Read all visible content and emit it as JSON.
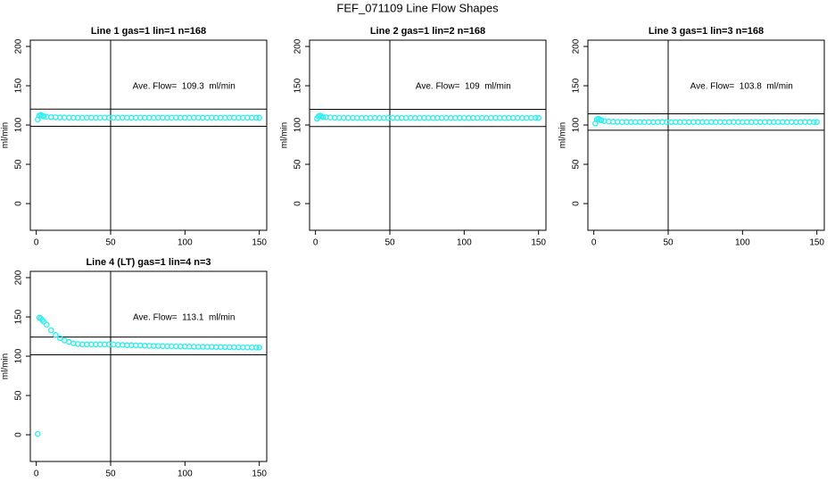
{
  "title": "FEF_071109  Line Flow Shapes",
  "chart_data": [
    {
      "type": "scatter",
      "title": "Line 1 gas=1 lin=1 n=168",
      "y_label": "ml/min",
      "annotation": "Ave. Flow=  109.3  ml/min",
      "color": "#33eeee",
      "x": [
        1,
        2,
        3,
        4,
        5,
        7,
        10,
        13,
        16,
        19,
        22,
        25,
        28,
        31,
        34,
        37,
        40,
        43,
        46,
        49,
        52,
        55,
        58,
        61,
        64,
        67,
        70,
        73,
        76,
        79,
        82,
        85,
        88,
        91,
        94,
        97,
        100,
        103,
        106,
        109,
        112,
        115,
        118,
        121,
        124,
        127,
        130,
        133,
        136,
        139,
        142,
        145,
        148,
        150
      ],
      "values": [
        107,
        112,
        113,
        112,
        111,
        110.5,
        110,
        109.8,
        109.6,
        109.5,
        109.4,
        109.3,
        109.3,
        109.2,
        109.4,
        109.3,
        109.3,
        109.2,
        109.4,
        109.3,
        109.3,
        109.2,
        109.4,
        109.3,
        109.3,
        109.2,
        109.4,
        109.3,
        109.3,
        109.2,
        109.4,
        109.3,
        109.3,
        109.2,
        109.4,
        109.3,
        109.3,
        109.2,
        109.4,
        109.3,
        109.3,
        109.2,
        109.4,
        109.3,
        109.3,
        109.2,
        109.4,
        109.3,
        109.3,
        109.2,
        109.4,
        109.3,
        109.3,
        109.2
      ],
      "hlines": [
        98.4,
        120.2
      ],
      "vlines": [
        50
      ],
      "xlim": [
        -4,
        155
      ],
      "ylim": [
        -34,
        208
      ],
      "xticks": [
        0,
        50,
        100,
        150
      ],
      "yticks": [
        0,
        50,
        100,
        150,
        200
      ]
    },
    {
      "type": "scatter",
      "title": "Line 2 gas=1 lin=2 n=168",
      "y_label": "ml/min",
      "annotation": "Ave. Flow=  109  ml/min",
      "color": "#33eeee",
      "x": [
        1,
        2,
        3,
        4,
        5,
        7,
        10,
        13,
        16,
        19,
        22,
        25,
        28,
        31,
        34,
        37,
        40,
        43,
        46,
        49,
        52,
        55,
        58,
        61,
        64,
        67,
        70,
        73,
        76,
        79,
        82,
        85,
        88,
        91,
        94,
        97,
        100,
        103,
        106,
        109,
        112,
        115,
        118,
        121,
        124,
        127,
        130,
        133,
        136,
        139,
        142,
        145,
        148,
        150
      ],
      "values": [
        108,
        111,
        112,
        111,
        110,
        109.8,
        109.5,
        109.3,
        109.2,
        109.1,
        109,
        109,
        109.1,
        108.9,
        109,
        109,
        109.1,
        108.9,
        109,
        109,
        109.1,
        108.9,
        109,
        109,
        109.1,
        108.9,
        109,
        109,
        109.1,
        108.9,
        109,
        109,
        109.1,
        108.9,
        109,
        109,
        109.1,
        108.9,
        109,
        109,
        109.1,
        108.9,
        109,
        109,
        109.1,
        108.9,
        109,
        109,
        109.1,
        108.9,
        109,
        109,
        109.1,
        108.9
      ],
      "hlines": [
        98.1,
        119.9
      ],
      "vlines": [
        50
      ],
      "xlim": [
        -4,
        155
      ],
      "ylim": [
        -34,
        208
      ],
      "xticks": [
        0,
        50,
        100,
        150
      ],
      "yticks": [
        0,
        50,
        100,
        150,
        200
      ]
    },
    {
      "type": "scatter",
      "title": "Line 3 gas=1 lin=3 n=168",
      "y_label": "ml/min",
      "annotation": "Ave. Flow=  103.8  ml/min",
      "color": "#33eeee",
      "x": [
        1,
        2,
        3,
        4,
        5,
        7,
        10,
        13,
        16,
        19,
        22,
        25,
        28,
        31,
        34,
        37,
        40,
        43,
        46,
        49,
        52,
        55,
        58,
        61,
        64,
        67,
        70,
        73,
        76,
        79,
        82,
        85,
        88,
        91,
        94,
        97,
        100,
        103,
        106,
        109,
        112,
        115,
        118,
        121,
        124,
        127,
        130,
        133,
        136,
        139,
        142,
        145,
        148,
        150
      ],
      "values": [
        102,
        107,
        108,
        107,
        106,
        105,
        104.5,
        104.2,
        104,
        103.9,
        103.8,
        103.8,
        103.7,
        103.9,
        103.8,
        103.8,
        103.7,
        103.9,
        103.8,
        103.8,
        103.7,
        103.9,
        103.8,
        103.8,
        103.7,
        103.9,
        103.8,
        103.8,
        103.7,
        103.9,
        103.8,
        103.8,
        103.7,
        103.9,
        103.8,
        103.8,
        103.7,
        103.9,
        103.8,
        103.8,
        103.7,
        103.9,
        103.8,
        103.8,
        103.7,
        103.9,
        103.8,
        103.8,
        103.7,
        103.9,
        103.8,
        103.8,
        103.7,
        103.9
      ],
      "hlines": [
        93.4,
        114.2
      ],
      "vlines": [
        50
      ],
      "xlim": [
        -4,
        155
      ],
      "ylim": [
        -34,
        208
      ],
      "xticks": [
        0,
        50,
        100,
        150
      ],
      "yticks": [
        0,
        50,
        100,
        150,
        200
      ]
    },
    {
      "type": "scatter",
      "title": "Line 4 (LT) gas=1 lin=4 n=3",
      "y_label": "ml/min",
      "annotation": "Ave. Flow=  113.1  ml/min",
      "color": "#33eeee",
      "x": [
        1,
        2,
        3,
        4,
        5,
        7,
        10,
        13,
        16,
        19,
        22,
        25,
        28,
        31,
        34,
        37,
        40,
        43,
        46,
        49,
        52,
        55,
        58,
        61,
        64,
        67,
        70,
        73,
        76,
        79,
        82,
        85,
        88,
        91,
        94,
        97,
        100,
        103,
        106,
        109,
        112,
        115,
        118,
        121,
        124,
        127,
        130,
        133,
        136,
        139,
        142,
        145,
        148,
        150
      ],
      "values": [
        1,
        149,
        148,
        146,
        144,
        140,
        133,
        127,
        123,
        120,
        118,
        116.5,
        115.5,
        115,
        115,
        115,
        115,
        115,
        115,
        115,
        114.8,
        114.5,
        114.3,
        114,
        114,
        113.8,
        113.6,
        113.4,
        113.2,
        113,
        113,
        112.8,
        112.7,
        112.6,
        112.5,
        112.4,
        112.3,
        112.2,
        112.1,
        112,
        112,
        111.9,
        111.8,
        111.7,
        111.6,
        111.5,
        111.5,
        111.4,
        111.3,
        111.3,
        111.2,
        111.1,
        111,
        111
      ],
      "hlines": [
        101.8,
        124.4
      ],
      "vlines": [
        50
      ],
      "xlim": [
        -4,
        155
      ],
      "ylim": [
        -34,
        208
      ],
      "xticks": [
        0,
        50,
        100,
        150
      ],
      "yticks": [
        0,
        50,
        100,
        150,
        200
      ]
    }
  ]
}
